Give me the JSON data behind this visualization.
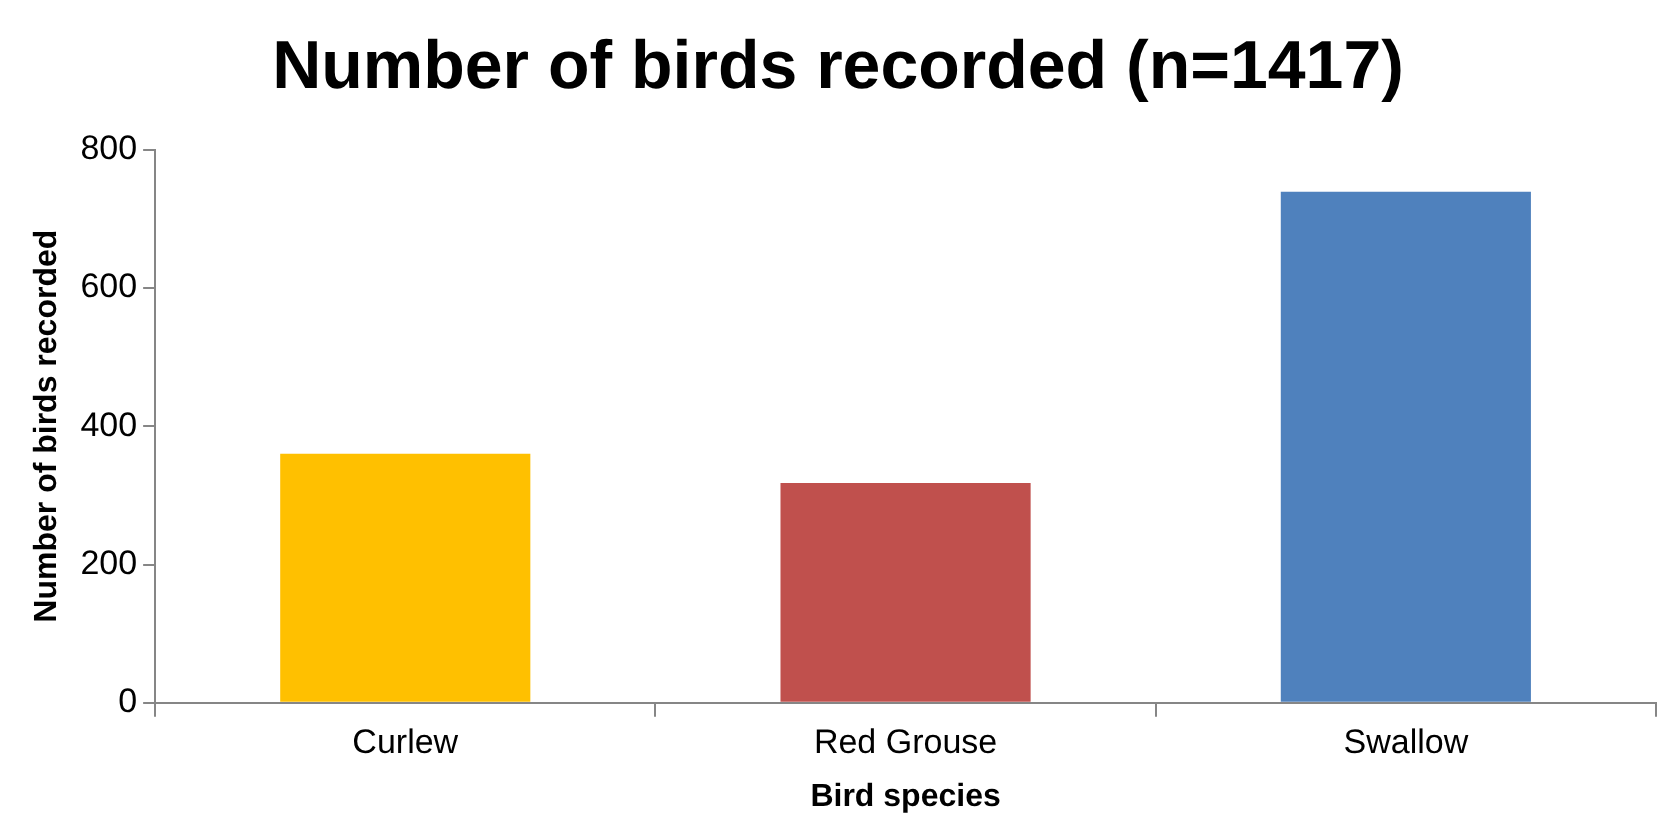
{
  "chart_data": {
    "type": "bar",
    "title": "Number of birds recorded (n=1417)",
    "xlabel": "Bird species",
    "ylabel": "Number of birds recorded",
    "categories": [
      "Curlew",
      "Red Grouse",
      "Swallow"
    ],
    "values": [
      360,
      318,
      739
    ],
    "colors": [
      "#ffc000",
      "#c0504d",
      "#4f81bd"
    ],
    "ylim": [
      0,
      800
    ],
    "yticks": [
      0,
      200,
      400,
      600,
      800
    ],
    "grid": false,
    "legend": false
  }
}
